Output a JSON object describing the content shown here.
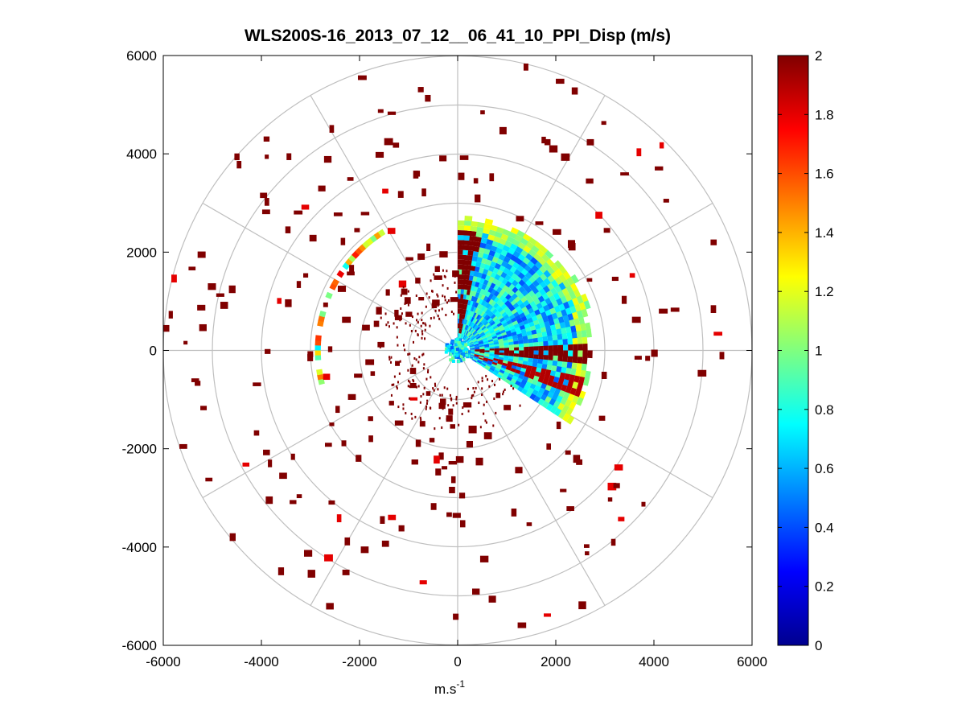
{
  "chart_data": {
    "type": "heatmap",
    "subtype": "polar-ppi",
    "title": "WLS200S-16_2013_07_12__06_41_10_PPI_Disp (m/s)",
    "xlabel": "m.s",
    "xlabel_sup": "-1",
    "ylabel": "",
    "xlim": [
      -6000,
      6000
    ],
    "ylim": [
      -6000,
      6000
    ],
    "xticks": [
      -6000,
      -4000,
      -2000,
      0,
      2000,
      4000,
      6000
    ],
    "yticks": [
      6000,
      4000,
      2000,
      0,
      -2000,
      -4000,
      -6000
    ],
    "xtick_labels": [
      "-6000",
      "-4000",
      "-2000",
      "0",
      "2000",
      "4000",
      "6000"
    ],
    "ytick_labels": [
      "6000",
      "4000",
      "2000",
      "0",
      "-2000",
      "-4000",
      "-6000"
    ],
    "range_rings_m": [
      1000,
      2000,
      3000,
      4000,
      5000,
      6000
    ],
    "spoke_angles_deg": [
      0,
      30,
      60,
      90,
      120,
      150,
      180,
      210,
      240,
      270,
      300,
      330
    ],
    "colorbar": {
      "min": 0,
      "max": 2,
      "ticks": [
        0,
        0.2,
        0.4,
        0.6,
        0.8,
        1,
        1.2,
        1.4,
        1.6,
        1.8,
        2
      ],
      "tick_labels": [
        "0",
        "0.2",
        "0.4",
        "0.6",
        "0.8",
        "1",
        "1.2",
        "1.4",
        "1.6",
        "1.8",
        "2"
      ],
      "colormap": "jet"
    },
    "sector": {
      "az_start_deg": 0,
      "az_end_deg": 123,
      "r_max_m": 2800,
      "typical_value_range": [
        0.4,
        1.0
      ],
      "edge_value": 1.1,
      "high_bands": [
        {
          "az_deg": 4,
          "r_min_m": 300,
          "r_max_m": 2400,
          "value": 2.0
        },
        {
          "az_deg": 90,
          "r_min_m": 300,
          "r_max_m": 2700,
          "value": 2.0
        },
        {
          "az_deg": 105,
          "r_min_m": 300,
          "r_max_m": 2600,
          "value": 1.9
        }
      ]
    },
    "outer_arc": {
      "az_start_deg": 256,
      "az_end_deg": 330,
      "r_m": 2850,
      "value_range": [
        0.7,
        1.8
      ]
    },
    "center_cluster": {
      "r_max_m": 250,
      "value_range": [
        0.4,
        1.0
      ]
    },
    "scatter_returns": {
      "value": 2.0,
      "r_min_m": 1000,
      "r_max_m": 6000
    }
  }
}
